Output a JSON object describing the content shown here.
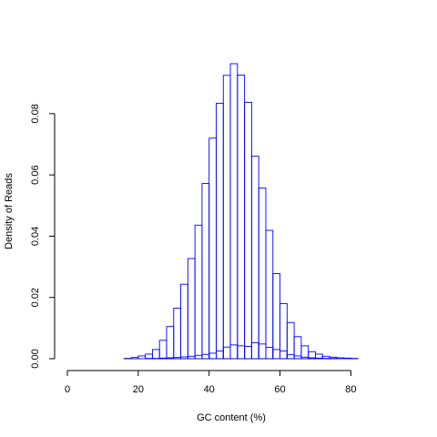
{
  "chart_data": {
    "type": "bar",
    "title": "",
    "xlabel": "GC content (%)",
    "ylabel": "Density of Reads",
    "xlim": [
      0,
      93
    ],
    "ylim": [
      0,
      0.096
    ],
    "xticks": [
      "0",
      "20",
      "40",
      "60",
      "80"
    ],
    "xtick_values": [
      0,
      20,
      40,
      60,
      80
    ],
    "yticks": [
      "0.00",
      "0.02",
      "0.04",
      "0.06",
      "0.08"
    ],
    "ytick_values": [
      0,
      0.02,
      0.04,
      0.06,
      0.08
    ],
    "grid": false,
    "legend": "none",
    "bar_color": "#0000ff",
    "x": [
      0,
      2,
      4,
      6,
      8,
      10,
      12,
      14,
      16,
      18,
      20,
      22,
      24,
      26,
      28,
      30,
      32,
      34,
      36,
      38,
      40,
      42,
      44,
      46,
      48,
      50,
      52,
      54,
      56,
      58,
      60,
      62,
      64,
      66,
      68,
      70,
      72,
      74,
      76,
      78,
      80,
      82,
      84,
      86,
      88,
      90
    ],
    "series": [
      {
        "values": [
          0,
          0,
          0,
          0,
          0,
          0,
          0,
          0,
          0.0001,
          0.0004,
          0.0009,
          0.0015,
          0.003,
          0.006,
          0.0105,
          0.0165,
          0.0243,
          0.0327,
          0.0436,
          0.0572,
          0.072,
          0.0834,
          0.0925,
          0.0963,
          0.0926,
          0.0837,
          0.0661,
          0.0557,
          0.0419,
          0.0278,
          0.018,
          0.0118,
          0.0072,
          0.0042,
          0.0023,
          0.0015,
          0.0008,
          0.0005,
          0.0003,
          0.0002,
          0.0001,
          0,
          0,
          0,
          0,
          0
        ]
      },
      {
        "values": [
          0,
          0,
          0,
          0,
          0,
          0,
          0,
          0,
          0,
          0,
          0,
          0.0001,
          0.0001,
          0.0002,
          0.0003,
          0.0004,
          0.0006,
          0.0008,
          0.0011,
          0.0014,
          0.0018,
          0.0025,
          0.0038,
          0.0045,
          0.0042,
          0.004,
          0.0052,
          0.0048,
          0.0037,
          0.003,
          0.0025,
          0.0013,
          0.0009,
          0.0005,
          0.0003,
          0.0002,
          0.0001,
          0.0001,
          0,
          0,
          0,
          0,
          0,
          0,
          0,
          0
        ]
      }
    ]
  }
}
